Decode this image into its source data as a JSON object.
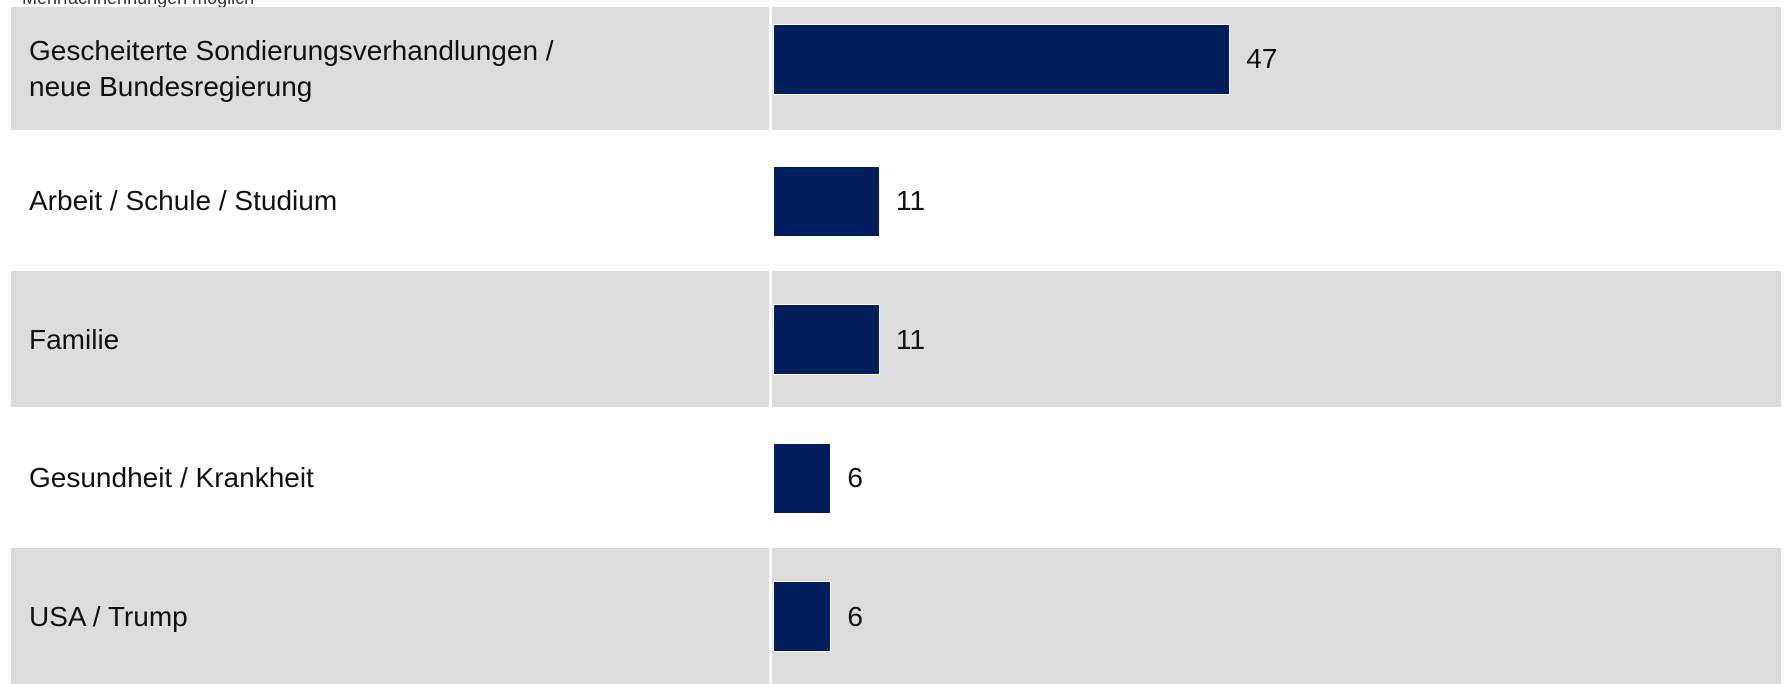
{
  "chart_data": {
    "type": "bar",
    "orientation": "horizontal",
    "subtitle": "Mehrfachnennungen möglich",
    "categories": [
      "Gescheiterte Sondierungsverhandlungen /\nneue Bundesregierung",
      "Arbeit / Schule / Studium",
      "Familie",
      "Gesundheit / Krankheit",
      "USA / Trump"
    ],
    "values": [
      47,
      11,
      11,
      6,
      6
    ],
    "color": "#001f5c"
  }
}
